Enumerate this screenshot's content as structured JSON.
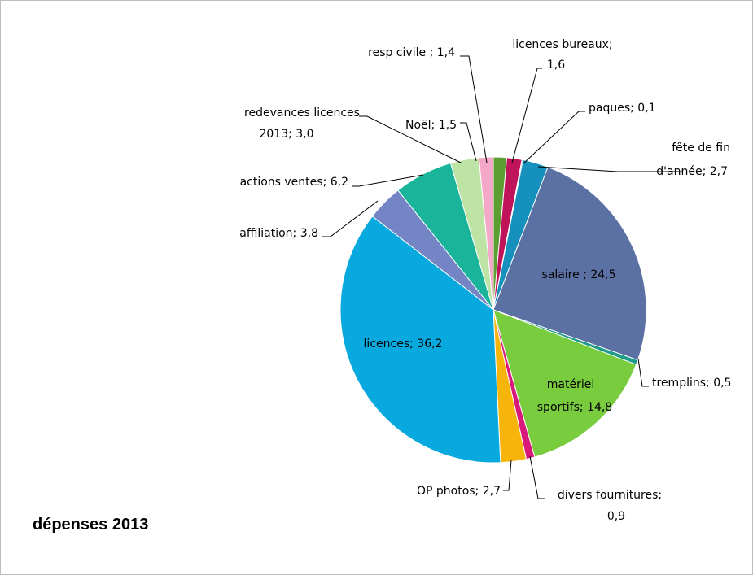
{
  "chart_data": {
    "type": "pie",
    "title": "dépenses 2013",
    "slices": [
      {
        "label": "resp civile ; 1,4",
        "category": "resp civile",
        "value": 1.4,
        "color": "#5c9e32"
      },
      {
        "label": "licences bureaux;",
        "label2": "1,6",
        "category": "licences bureaux",
        "value": 1.6,
        "color": "#c0145a"
      },
      {
        "label": "paques; 0,1",
        "category": "paques",
        "value": 0.1,
        "color": "#1f3f86"
      },
      {
        "label": "fête de fin",
        "label2": "d'année; 2,7",
        "category": "fête de fin d'année",
        "value": 2.7,
        "color": "#1690bd"
      },
      {
        "label": "salaire ; 24,5",
        "category": "salaire",
        "value": 24.5,
        "color": "#5b70a3"
      },
      {
        "label": "tremplins; 0,5",
        "category": "tremplins",
        "value": 0.5,
        "color": "#1e9a8a"
      },
      {
        "label": "matériel",
        "label2": "sportifs; 14,8",
        "category": "matériel sportifs",
        "value": 14.8,
        "color": "#7acc3f"
      },
      {
        "label": "divers fournitures;",
        "label2": "0,9",
        "category": "divers fournitures",
        "value": 0.9,
        "color": "#d8197a"
      },
      {
        "label": "OP photos; 2,7",
        "category": "OP photos",
        "value": 2.7,
        "color": "#f7b50c"
      },
      {
        "label": "licences; 36,2",
        "category": "licences",
        "value": 36.2,
        "color": "#07a9de"
      },
      {
        "label": "affiliation; 3,8",
        "category": "affiliation",
        "value": 3.8,
        "color": "#7485c6"
      },
      {
        "label": "actions ventes; 6,2",
        "category": "actions ventes",
        "value": 6.2,
        "color": "#1ab49a"
      },
      {
        "label": "redevances licences",
        "label2": "2013; 3,0",
        "category": "redevances licences 2013",
        "value": 3.0,
        "color": "#bde3a5"
      },
      {
        "label": "Noël; 1,5",
        "category": "Noël",
        "value": 1.5,
        "color": "#f2a8c6"
      }
    ]
  }
}
